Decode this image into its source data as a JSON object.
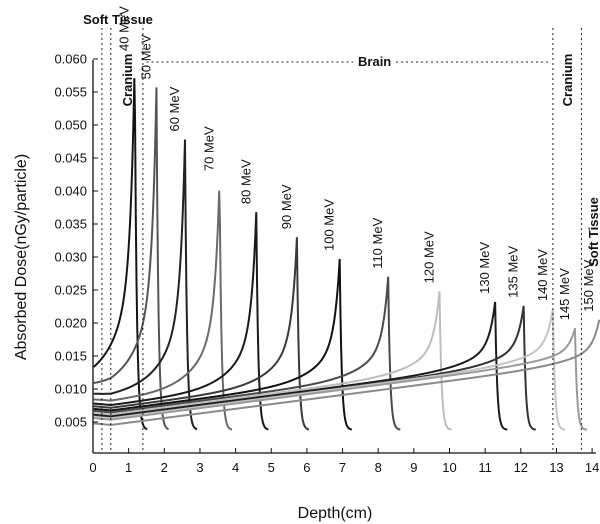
{
  "chart_data": {
    "type": "line",
    "title": "",
    "xlabel": "Depth(cm)",
    "ylabel": "Absorbed Dose(nGy/particle)",
    "xlim": [
      0,
      14.2
    ],
    "ylim": [
      0.0025,
      0.061
    ],
    "xticks": [
      0,
      1,
      2,
      3,
      4,
      5,
      6,
      7,
      8,
      9,
      10,
      11,
      12,
      13,
      14
    ],
    "yticks": [
      0.005,
      0.01,
      0.015,
      0.02,
      0.025,
      0.03,
      0.035,
      0.04,
      0.045,
      0.05,
      0.055,
      0.06
    ],
    "yticklabels": [
      "0.005",
      "0.010",
      "0.015",
      "0.020",
      "0.025",
      "0.030",
      "0.035",
      "0.040",
      "0.045",
      "0.050",
      "0.055",
      "0.060"
    ],
    "grid": false,
    "legend": "none",
    "regions": [
      {
        "label": "Soft Tissue",
        "x_start": 0,
        "x_end": 0.5
      },
      {
        "label": "Cranium",
        "x_start": 0.5,
        "x_end": 1.4
      },
      {
        "label": "Brain",
        "x_start": 1.4,
        "x_end": 12.9
      },
      {
        "label": "Cranium",
        "x_start": 12.9,
        "x_end": 13.7
      },
      {
        "label": "Soft Tissue",
        "x_start": 13.7,
        "x_end": 14.2
      }
    ],
    "series": [
      {
        "name": "40 MeV",
        "entrance": 0.011,
        "peak_x": 1.17,
        "peak_y": 0.06,
        "color": "#151515"
      },
      {
        "name": "50 MeV",
        "entrance": 0.0095,
        "peak_x": 1.78,
        "peak_y": 0.0557,
        "color": "#555555"
      },
      {
        "name": "60 MeV",
        "entrance": 0.0085,
        "peak_x": 2.58,
        "peak_y": 0.0478,
        "color": "#222222"
      },
      {
        "name": "70 MeV",
        "entrance": 0.0078,
        "peak_x": 3.55,
        "peak_y": 0.0418,
        "color": "#6a6a6a"
      },
      {
        "name": "80 MeV",
        "entrance": 0.0072,
        "peak_x": 4.58,
        "peak_y": 0.0368,
        "color": "#1a1a1a"
      },
      {
        "name": "90 MeV",
        "entrance": 0.0068,
        "peak_x": 5.72,
        "peak_y": 0.033,
        "color": "#3a3a3a"
      },
      {
        "name": "100 MeV",
        "entrance": 0.0064,
        "peak_x": 6.92,
        "peak_y": 0.0297,
        "color": "#111111"
      },
      {
        "name": "110 MeV",
        "entrance": 0.0061,
        "peak_x": 8.28,
        "peak_y": 0.027,
        "color": "#4a4a4a"
      },
      {
        "name": "120 MeV",
        "entrance": 0.0058,
        "peak_x": 9.72,
        "peak_y": 0.0248,
        "color": "#bdbdbd"
      },
      {
        "name": "130 MeV",
        "entrance": 0.0055,
        "peak_x": 11.28,
        "peak_y": 0.0232,
        "color": "#1c1c1c"
      },
      {
        "name": "135 MeV",
        "entrance": 0.0053,
        "peak_x": 12.08,
        "peak_y": 0.0226,
        "color": "#333333"
      },
      {
        "name": "140 MeV",
        "entrance": 0.0052,
        "peak_x": 12.9,
        "peak_y": 0.0221,
        "color": "#c4c4c4"
      },
      {
        "name": "145 MeV",
        "entrance": 0.005,
        "peak_x": 13.52,
        "peak_y": 0.0192,
        "color": "#9a9a9a"
      },
      {
        "name": "150 MeV",
        "entrance": 0.0042,
        "peak_x": 14.2,
        "peak_y": 0.0205,
        "color": "#8a8a8a"
      }
    ]
  }
}
